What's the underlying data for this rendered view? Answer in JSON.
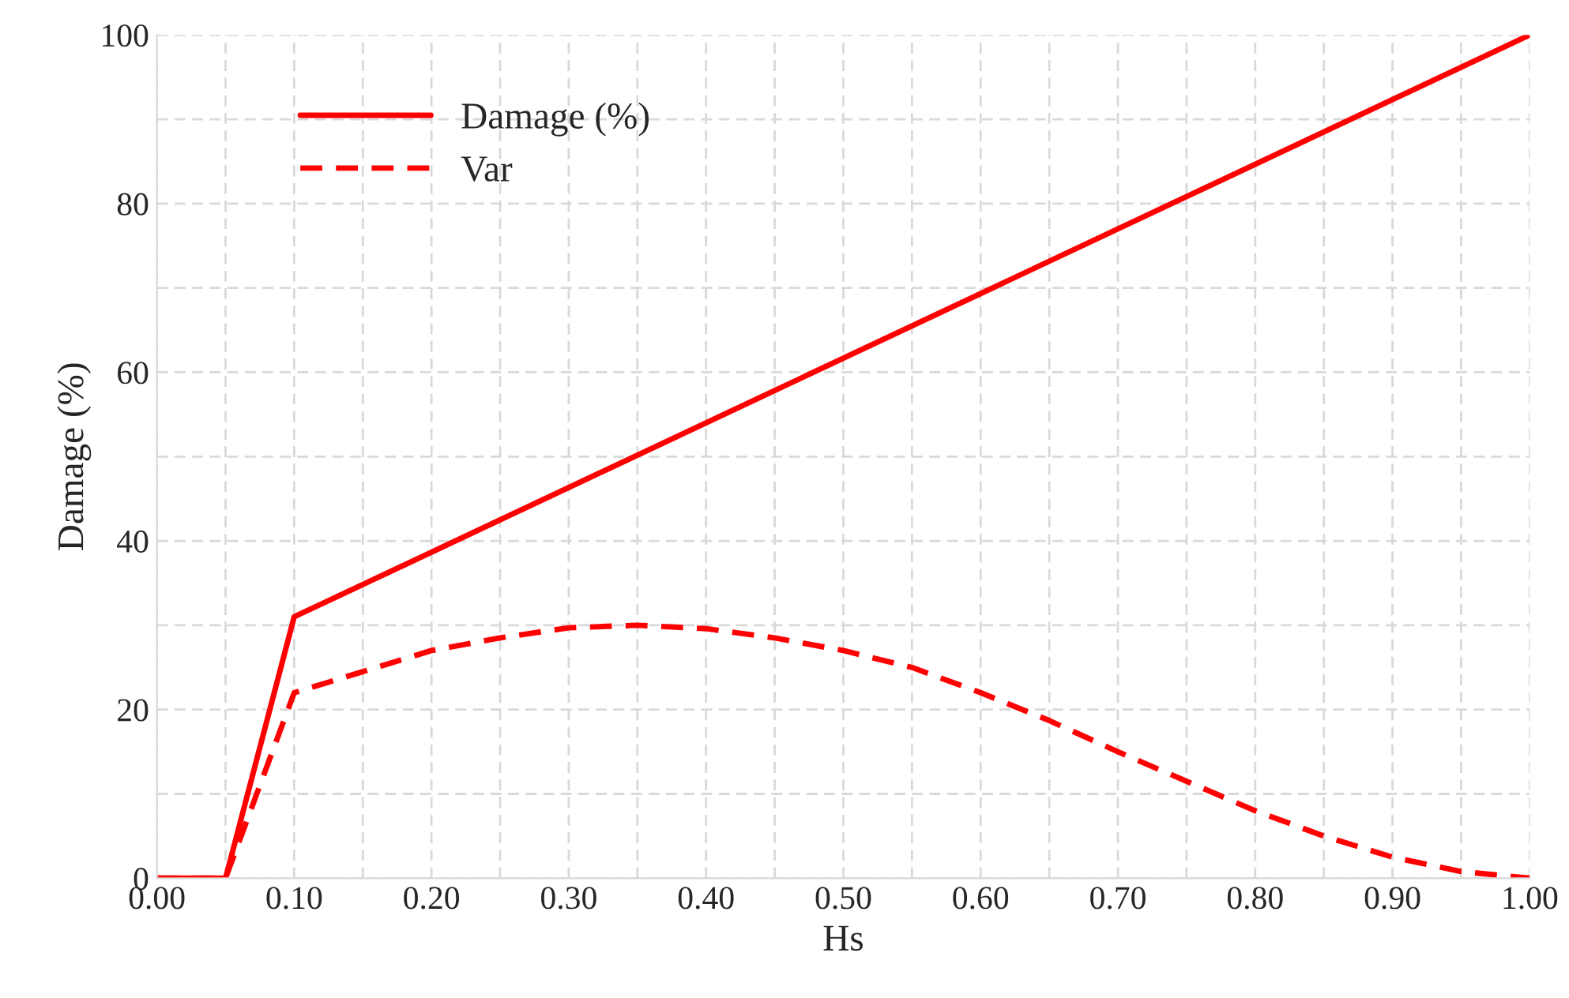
{
  "chart_data": {
    "type": "line",
    "xlabel": "Hs",
    "ylabel": "Damage (%)",
    "xlim": [
      0,
      1
    ],
    "ylim": [
      0,
      100
    ],
    "xticks": [
      {
        "value": 0,
        "label": "0.00"
      },
      {
        "value": 0.05,
        "label": null
      },
      {
        "value": 0.1,
        "label": "0.10"
      },
      {
        "value": 0.15,
        "label": null
      },
      {
        "value": 0.2,
        "label": "0.20"
      },
      {
        "value": 0.25,
        "label": null
      },
      {
        "value": 0.3,
        "label": "0.30"
      },
      {
        "value": 0.35,
        "label": null
      },
      {
        "value": 0.4,
        "label": "0.40"
      },
      {
        "value": 0.45,
        "label": null
      },
      {
        "value": 0.5,
        "label": "0.50"
      },
      {
        "value": 0.55,
        "label": null
      },
      {
        "value": 0.6,
        "label": "0.60"
      },
      {
        "value": 0.65,
        "label": null
      },
      {
        "value": 0.7,
        "label": "0.70"
      },
      {
        "value": 0.75,
        "label": null
      },
      {
        "value": 0.8,
        "label": "0.80"
      },
      {
        "value": 0.85,
        "label": null
      },
      {
        "value": 0.9,
        "label": "0.90"
      },
      {
        "value": 0.95,
        "label": null
      },
      {
        "value": 1,
        "label": "1.00"
      }
    ],
    "yticks": [
      0,
      {
        "value": 10,
        "label": null
      },
      20,
      {
        "value": 30,
        "label": null
      },
      40,
      {
        "value": 50,
        "label": null
      },
      60,
      {
        "value": 70,
        "label": null
      },
      80,
      {
        "value": 90,
        "label": null
      },
      100
    ],
    "grid": true,
    "legend": "top left",
    "marker": "none",
    "series": [
      {
        "name": "Damage (%)",
        "color": "#ff0000",
        "line_style": "solid",
        "x": [
          0,
          0.05,
          0.1,
          1.0
        ],
        "values": [
          0,
          0,
          31,
          100
        ]
      },
      {
        "name": "Var",
        "color": "#ff0000",
        "line_style": "dashed",
        "x": [
          0,
          0.05,
          0.1,
          0.15,
          0.2,
          0.25,
          0.3,
          0.35,
          0.4,
          0.45,
          0.5,
          0.55,
          0.6,
          0.65,
          0.7,
          0.75,
          0.8,
          0.85,
          0.9,
          0.95,
          1.0
        ],
        "values": [
          0,
          0,
          22,
          24.5,
          27,
          28.5,
          29.7,
          30,
          29.6,
          28.5,
          27,
          25,
          22,
          18.7,
          15,
          11.5,
          8,
          5,
          2.5,
          0.8,
          0
        ]
      }
    ]
  }
}
